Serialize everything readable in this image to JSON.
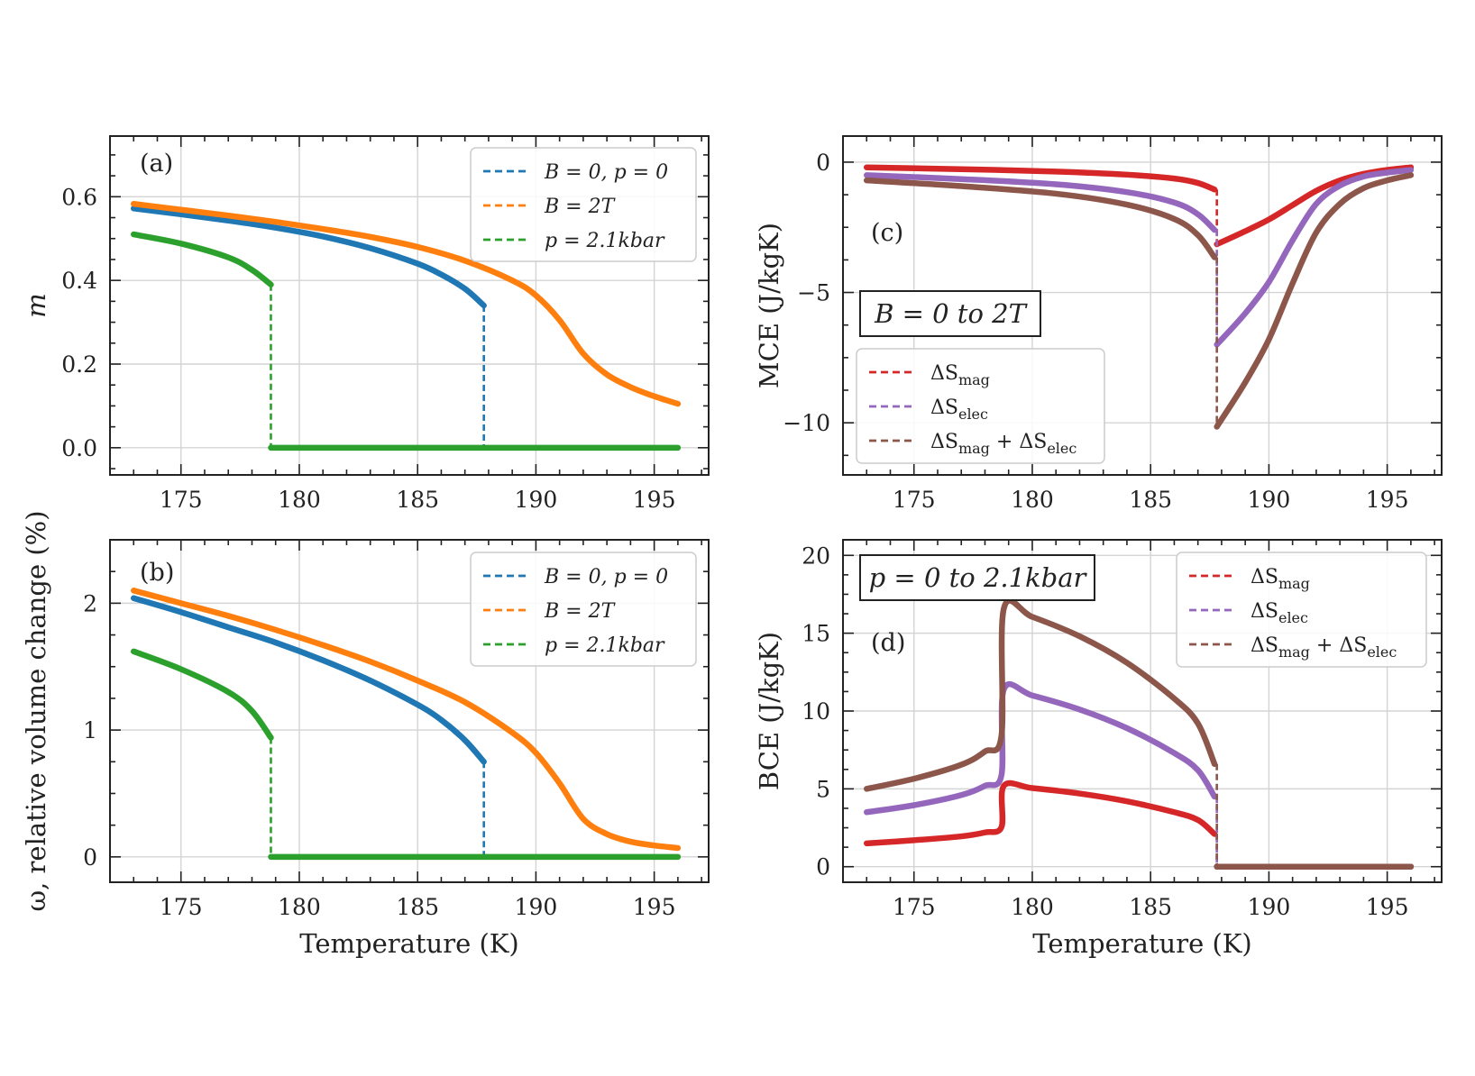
{
  "chart_data": [
    {
      "id": "a",
      "type": "line",
      "panel_label": "(a)",
      "xlabel": "",
      "ylabel": "m",
      "xlim": [
        172,
        197.3
      ],
      "ylim": [
        -0.065,
        0.745
      ],
      "xticks": [
        175,
        180,
        185,
        190,
        195
      ],
      "yticks": [
        0.0,
        0.2,
        0.4,
        0.6
      ],
      "ytick_labels": [
        "0.0",
        "0.2",
        "0.4",
        "0.6"
      ],
      "grid": true,
      "legend_position": "top-right",
      "series": [
        {
          "name": "B = 0, p = 0",
          "color": "#1f77b4",
          "legend": "B = 0,  p = 0",
          "x": [
            173,
            175,
            177,
            179,
            181,
            183,
            185,
            186,
            187,
            187.8
          ],
          "y": [
            0.572,
            0.558,
            0.543,
            0.526,
            0.505,
            0.477,
            0.44,
            0.414,
            0.38,
            0.34
          ],
          "jump": {
            "x": 187.8,
            "from": 0.34,
            "to": 0.0
          }
        },
        {
          "name": "B = 2T",
          "color": "#ff7f0e",
          "legend": "B = 2T",
          "x": [
            173,
            175,
            177,
            179,
            181,
            183,
            185,
            187,
            189,
            190,
            191,
            192,
            193,
            194,
            195,
            196
          ],
          "y": [
            0.583,
            0.569,
            0.555,
            0.54,
            0.523,
            0.504,
            0.48,
            0.447,
            0.4,
            0.364,
            0.305,
            0.225,
            0.175,
            0.145,
            0.123,
            0.105
          ]
        },
        {
          "name": "p = 2.1kbar",
          "color": "#2ca02c",
          "legend": "p = 2.1kbar",
          "x": [
            173,
            175,
            177,
            178,
            178.8,
            178.8,
            185,
            190,
            196
          ],
          "y": [
            0.51,
            0.488,
            0.455,
            0.425,
            0.39,
            0.0,
            0.0,
            0.0,
            0.0
          ],
          "jump": {
            "x": 178.8,
            "from": 0.39,
            "to": 0.0
          }
        }
      ]
    },
    {
      "id": "b",
      "type": "line",
      "panel_label": "(b)",
      "xlabel": "Temperature (K)",
      "ylabel": "ω, relative volume change (%)",
      "xlim": [
        172,
        197.3
      ],
      "ylim": [
        -0.2,
        2.5
      ],
      "xticks": [
        175,
        180,
        185,
        190,
        195
      ],
      "yticks": [
        0,
        1,
        2
      ],
      "ytick_labels": [
        "0",
        "1",
        "2"
      ],
      "grid": true,
      "legend_position": "top-right",
      "series": [
        {
          "name": "B = 0, p = 0",
          "color": "#1f77b4",
          "legend": "B = 0,  p = 0",
          "x": [
            173,
            175,
            177,
            179,
            181,
            183,
            185,
            186,
            187,
            187.8
          ],
          "y": [
            2.04,
            1.93,
            1.81,
            1.69,
            1.55,
            1.39,
            1.2,
            1.08,
            0.92,
            0.75
          ],
          "jump": {
            "x": 187.8,
            "from": 0.75,
            "to": 0.0
          }
        },
        {
          "name": "B = 2T",
          "color": "#ff7f0e",
          "legend": "B = 2T",
          "x": [
            173,
            175,
            177,
            179,
            181,
            183,
            185,
            187,
            189,
            190,
            191,
            192,
            193,
            194,
            195,
            196
          ],
          "y": [
            2.1,
            2.0,
            1.9,
            1.79,
            1.67,
            1.54,
            1.39,
            1.22,
            0.98,
            0.82,
            0.58,
            0.3,
            0.18,
            0.12,
            0.09,
            0.07
          ]
        },
        {
          "name": "p = 2.1kbar",
          "color": "#2ca02c",
          "legend": "p = 2.1kbar",
          "x": [
            173,
            175,
            177,
            178,
            178.8,
            178.8,
            185,
            190,
            196
          ],
          "y": [
            1.62,
            1.48,
            1.3,
            1.15,
            0.94,
            0.0,
            0.0,
            0.0,
            0.0
          ],
          "jump": {
            "x": 178.8,
            "from": 0.94,
            "to": 0.0
          }
        }
      ]
    },
    {
      "id": "c",
      "type": "line",
      "panel_label": "(c)",
      "xlabel": "",
      "ylabel": "MCE (J/kgK)",
      "annotation_box": "B = 0 to 2T",
      "xlim": [
        172,
        197.3
      ],
      "ylim": [
        -12,
        1
      ],
      "xticks": [
        175,
        180,
        185,
        190,
        195
      ],
      "yticks": [
        0,
        -5,
        -10
      ],
      "ytick_labels": [
        "0",
        "−5",
        "−10"
      ],
      "grid": true,
      "legend_position": "bottom-left",
      "series": [
        {
          "name": "ΔS_mag",
          "color": "#d62728",
          "legend": "ΔS",
          "legend_sub": "mag",
          "x": [
            173,
            177,
            181,
            184,
            186,
            187,
            187.7,
            187.8,
            189,
            190,
            191,
            192,
            193,
            194,
            195,
            196
          ],
          "y": [
            -0.2,
            -0.27,
            -0.36,
            -0.48,
            -0.63,
            -0.8,
            -1.05,
            -3.15,
            -2.65,
            -2.2,
            -1.65,
            -1.1,
            -0.7,
            -0.45,
            -0.3,
            -0.2
          ],
          "jump": {
            "x": 187.8,
            "from": -1.05,
            "to": -3.15
          }
        },
        {
          "name": "ΔS_elec",
          "color": "#9467bd",
          "legend": "ΔS",
          "legend_sub": "elec",
          "x": [
            173,
            177,
            181,
            184,
            186,
            187,
            187.7,
            187.8,
            189,
            190,
            191,
            192,
            193,
            194,
            195,
            196
          ],
          "y": [
            -0.5,
            -0.65,
            -0.85,
            -1.15,
            -1.55,
            -2.0,
            -2.6,
            -7.0,
            -5.8,
            -4.6,
            -3.0,
            -1.6,
            -0.9,
            -0.55,
            -0.4,
            -0.3
          ],
          "jump": {
            "x": 187.8,
            "from": -2.6,
            "to": -7.0
          }
        },
        {
          "name": "ΔS_mag + ΔS_elec",
          "color": "#8c564b",
          "legend": "ΔS",
          "legend_sub": "mag",
          "legend_tail": "elec",
          "x": [
            173,
            177,
            181,
            184,
            186,
            187,
            187.7,
            187.8,
            189,
            190,
            191,
            192,
            193,
            194,
            195,
            196
          ],
          "y": [
            -0.7,
            -0.92,
            -1.21,
            -1.63,
            -2.18,
            -2.8,
            -3.65,
            -10.15,
            -8.45,
            -6.8,
            -4.65,
            -2.7,
            -1.6,
            -1.0,
            -0.7,
            -0.5
          ],
          "jump": {
            "x": 187.8,
            "from": -3.65,
            "to": -10.15
          }
        }
      ]
    },
    {
      "id": "d",
      "type": "line",
      "panel_label": "(d)",
      "xlabel": "Temperature (K)",
      "ylabel": "BCE (J/kgK)",
      "annotation_box": "p = 0 to 2.1kbar",
      "xlim": [
        172,
        197.3
      ],
      "ylim": [
        -1,
        21
      ],
      "xticks": [
        175,
        180,
        185,
        190,
        195
      ],
      "yticks": [
        0,
        5,
        10,
        15,
        20
      ],
      "ytick_labels": [
        "0",
        "5",
        "10",
        "15",
        "20"
      ],
      "grid": true,
      "legend_position": "top-right",
      "series": [
        {
          "name": "ΔS_mag",
          "color": "#d62728",
          "legend": "ΔS",
          "legend_sub": "mag",
          "x": [
            173,
            175,
            177,
            178,
            178.7,
            178.8,
            180,
            182,
            184,
            186,
            187,
            187.7,
            187.8,
            190,
            196
          ],
          "y": [
            1.5,
            1.7,
            1.95,
            2.2,
            2.55,
            5.2,
            5.05,
            4.7,
            4.2,
            3.5,
            3.0,
            2.1,
            0.0,
            0.0,
            0.0
          ],
          "jump": {
            "x": 187.8,
            "from": 2.1,
            "to": 0.0
          }
        },
        {
          "name": "ΔS_elec",
          "color": "#9467bd",
          "legend": "ΔS",
          "legend_sub": "elec",
          "x": [
            173,
            175,
            177,
            178,
            178.7,
            178.8,
            180,
            182,
            184,
            186,
            187,
            187.7,
            187.8,
            190,
            196
          ],
          "y": [
            3.5,
            3.95,
            4.6,
            5.2,
            5.9,
            11.4,
            11.0,
            10.1,
            8.9,
            7.3,
            6.2,
            4.5,
            0.0,
            0.0,
            0.0
          ],
          "jump": {
            "x": 187.8,
            "from": 4.5,
            "to": 0.0
          }
        },
        {
          "name": "ΔS_mag + ΔS_elec",
          "color": "#8c564b",
          "legend": "ΔS",
          "legend_sub": "mag",
          "legend_tail": "elec",
          "x": [
            173,
            175,
            177,
            178,
            178.7,
            178.8,
            180,
            182,
            184,
            186,
            187,
            187.7,
            187.8,
            190,
            196
          ],
          "y": [
            5.0,
            5.65,
            6.55,
            7.4,
            8.45,
            16.6,
            16.05,
            14.8,
            13.1,
            10.8,
            9.2,
            6.6,
            0.0,
            0.0,
            0.0
          ],
          "jump": {
            "x": 187.8,
            "from": 6.6,
            "to": 0.0
          }
        }
      ]
    }
  ]
}
